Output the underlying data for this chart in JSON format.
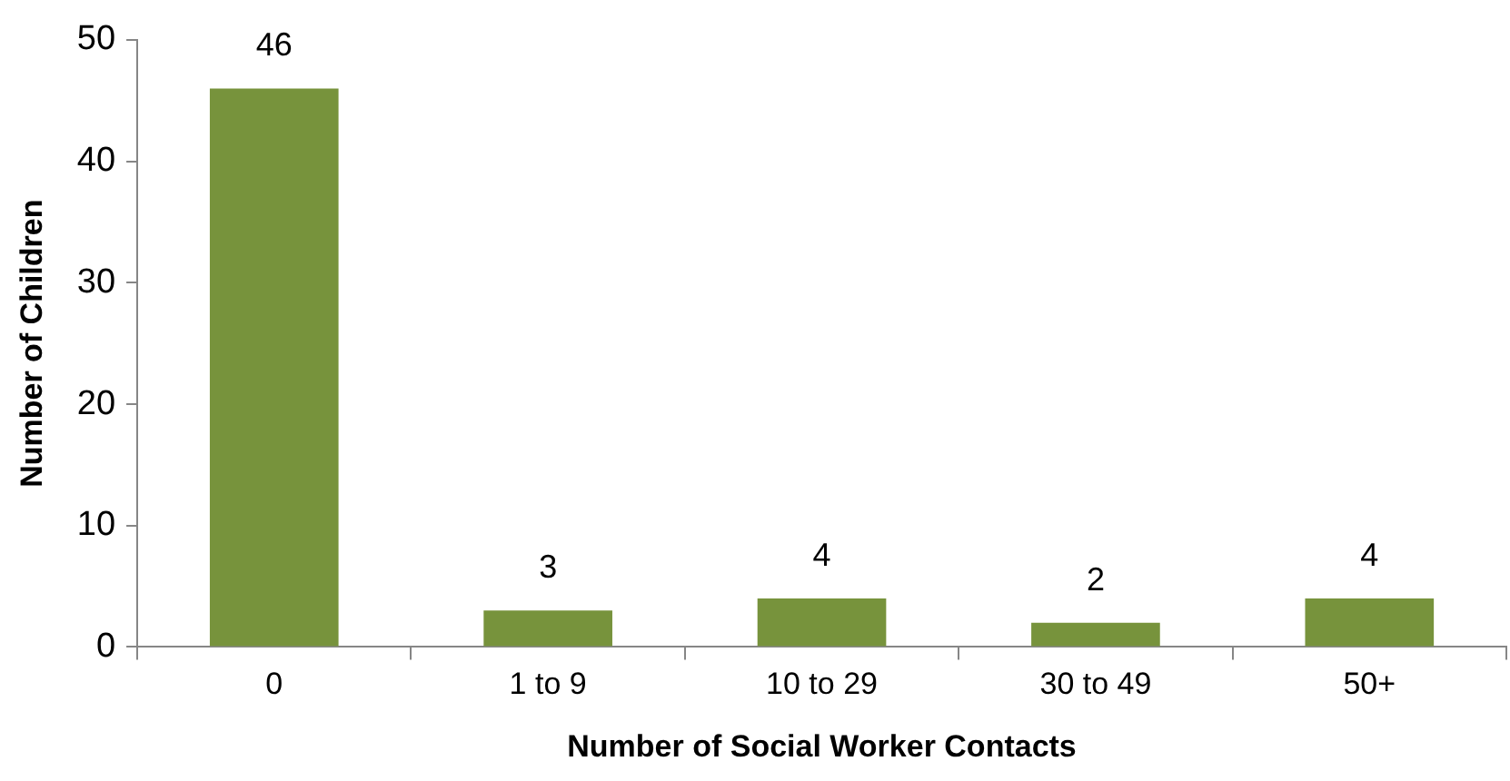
{
  "chart_data": {
    "type": "bar",
    "xlabel": "Number of Social Worker Contacts",
    "ylabel": "Number of Children",
    "categories": [
      "0",
      "1 to 9",
      "10 to 29",
      "30 to 49",
      "50+"
    ],
    "values": [
      46,
      3,
      4,
      2,
      4
    ],
    "color": "#77933c",
    "ylim": [
      0,
      50
    ],
    "yticks": [
      0,
      10,
      20,
      30,
      40,
      50
    ],
    "grid": false,
    "legend": false,
    "data_labels": true
  }
}
